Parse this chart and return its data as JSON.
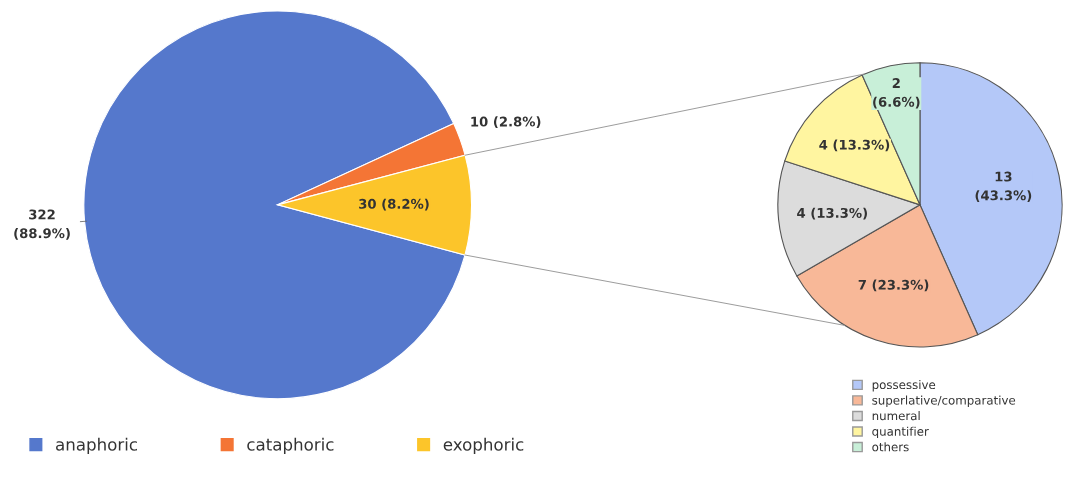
{
  "chart_data": [
    {
      "type": "pie",
      "categories": [
        "anaphoric",
        "cataphoric",
        "exophoric"
      ],
      "values": [
        322,
        10,
        30
      ],
      "colors": [
        "#5578cc",
        "#f47535",
        "#fcc52a"
      ],
      "value_labels": [
        "322\n(88.9%)",
        "10 (2.8%)",
        "30 (8.2%)"
      ],
      "legend": "bottom"
    },
    {
      "type": "pie",
      "categories": [
        "possessive",
        "superlative/comparative",
        "numeral",
        "quantifier",
        "others"
      ],
      "values": [
        13,
        7,
        4,
        4,
        2
      ],
      "colors": [
        "#b4c8f8",
        "#f8b898",
        "#dcdcdc",
        "#fff5a0",
        "#c8efd8"
      ],
      "value_labels": [
        "13\n(43.3%)",
        "7 (23.3%)",
        "4 (13.3%)",
        "4 (13.3%)",
        "2\n(6.6%)"
      ],
      "legend": "bottom"
    }
  ]
}
